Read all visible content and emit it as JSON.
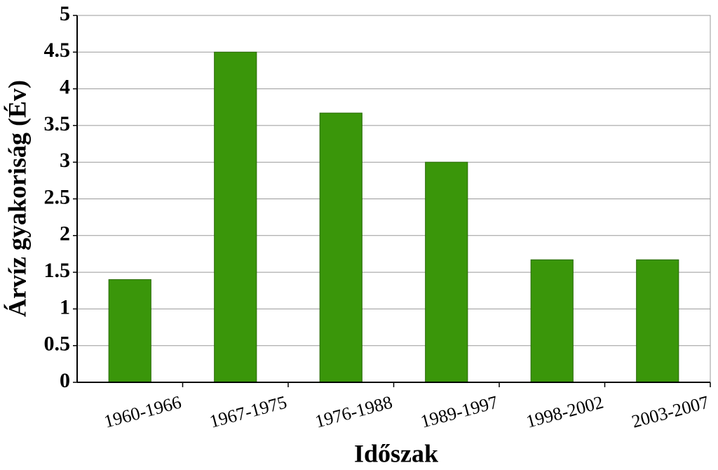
{
  "chart_data": {
    "type": "bar",
    "x_label": "Időszak",
    "y_label": "Árvíz gyakoriság (Év)",
    "categories": [
      "1960-1966",
      "1967-1975",
      "1976-1988",
      "1989-1997",
      "1998-2002",
      "2003-2007"
    ],
    "values": [
      1.4,
      4.5,
      3.67,
      3.0,
      1.67,
      1.67
    ],
    "color": "#3a960a",
    "ylim": [
      0,
      5
    ],
    "yticks": [
      0,
      0.5,
      1,
      1.5,
      2,
      2.5,
      3,
      3.5,
      4,
      4.5,
      5
    ],
    "grid": true
  }
}
